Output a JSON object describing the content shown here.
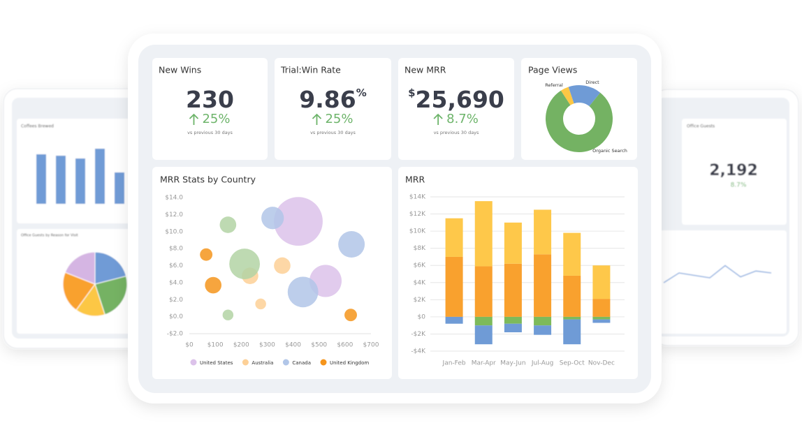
{
  "kpis": [
    {
      "title": "New Wins",
      "value": "230",
      "change": "25%",
      "note": "vs previous 30 days"
    },
    {
      "title": "Trial:Win Rate",
      "value": "9.86",
      "unit": "%",
      "change": "25%",
      "note": "vs previous 30 days"
    },
    {
      "title": "New MRR",
      "prefix": "$",
      "value": "25,690",
      "change": "8.7%",
      "note": "vs previous 30 days"
    }
  ],
  "chart_data": [
    {
      "type": "donut",
      "title": "Page Views",
      "categories": [
        "Referral",
        "Direct",
        "Organic Search"
      ],
      "values": [
        4,
        16,
        80
      ],
      "colors": [
        "#fcc745",
        "#6f9bd6",
        "#74b263"
      ]
    },
    {
      "type": "bubble",
      "title": "MRR Stats by Country",
      "xlim": [
        0,
        700
      ],
      "ylim": [
        -2,
        14
      ],
      "xticks": [
        {
          "value": 0,
          "label": "$0"
        },
        {
          "value": 100,
          "label": "$100"
        },
        {
          "value": 200,
          "label": "$200"
        },
        {
          "value": 300,
          "label": "$300"
        },
        {
          "value": 400,
          "label": "$400"
        },
        {
          "value": 500,
          "label": "$500"
        },
        {
          "value": 600,
          "label": "$600"
        },
        {
          "value": 700,
          "label": "$700"
        }
      ],
      "yticks": [
        {
          "value": -2,
          "label": "-$2.0"
        },
        {
          "value": 0,
          "label": "$0.0"
        },
        {
          "value": 2,
          "label": "$2.0"
        },
        {
          "value": 4,
          "label": "$4.0"
        },
        {
          "value": 6,
          "label": "$6.0"
        },
        {
          "value": 8,
          "label": "$8.0"
        },
        {
          "value": 10,
          "label": "$10.0"
        },
        {
          "value": 12,
          "label": "$12.0"
        },
        {
          "value": 14,
          "label": "$14.0"
        }
      ],
      "series": [
        {
          "name": "United States",
          "color": "#dcc2ea",
          "x": [
            420,
            525
          ],
          "values": [
            11.2,
            4.2
          ],
          "sizes": [
            122,
            53
          ]
        },
        {
          "name": "Australia",
          "color": "#fdd097",
          "x": [
            358,
            234,
            275
          ],
          "values": [
            6.0,
            4.8,
            1.5
          ],
          "sizes": [
            14,
            14,
            6
          ]
        },
        {
          "name": "Canada",
          "color": "#b1c6e8",
          "x": [
            321,
            625,
            438
          ],
          "values": [
            11.6,
            8.5,
            2.9
          ],
          "sizes": [
            26,
            36,
            48
          ]
        },
        {
          "name": "United Kingdom",
          "color": "#f5951c",
          "x": [
            65,
            92,
            622
          ],
          "values": [
            7.3,
            3.7,
            0.2
          ],
          "sizes": [
            8,
            14,
            8
          ]
        },
        {
          "color": "#b3d4a5",
          "x": [
            149,
            213,
            149
          ],
          "values": [
            10.8,
            6.2,
            0.2
          ],
          "sizes": [
            14,
            48,
            6
          ]
        }
      ]
    },
    {
      "type": "stacked_bar",
      "title": "MRR",
      "categories": [
        "Jan-Feb",
        "Mar-Apr",
        "May-Jun",
        "Jul-Aug",
        "Sep-Oct",
        "Nov-Dec"
      ],
      "ylim": [
        -4,
        14
      ],
      "yticks": [
        {
          "value": -4,
          "label": "-$4K"
        },
        {
          "value": -2,
          "label": "-$2K"
        },
        {
          "value": 0,
          "label": "$0"
        },
        {
          "value": 2,
          "label": "$2K"
        },
        {
          "value": 4,
          "label": "$4K"
        },
        {
          "value": 6,
          "label": "$6K"
        },
        {
          "value": 8,
          "label": "$8K"
        },
        {
          "value": 10,
          "label": "$10K"
        },
        {
          "value": 12,
          "label": "$12K"
        },
        {
          "value": 14,
          "label": "$14K"
        }
      ],
      "grid": true,
      "series": [
        {
          "color": "#f9a12e",
          "values": [
            7.0,
            5.9,
            6.2,
            7.3,
            4.8,
            2.1
          ]
        },
        {
          "color": "#fec84a",
          "values": [
            4.5,
            7.6,
            4.8,
            5.2,
            5.0,
            3.9
          ]
        },
        {
          "color": "#7dba5b",
          "values": [
            0,
            -1.0,
            -0.8,
            -1.0,
            -0.3,
            -0.3
          ]
        },
        {
          "color": "#6f9bd6",
          "values": [
            -0.8,
            -2.2,
            -1.0,
            -1.1,
            -2.9,
            -0.4
          ]
        }
      ]
    }
  ],
  "background": {
    "left_title": "Coffees Brewed",
    "left_bars": [
      71,
      69,
      65,
      79,
      45
    ],
    "left_pie_title": "Office Guests by Reason for Visit",
    "left_pie": [
      21,
      24,
      15,
      21,
      19
    ],
    "left_pie_colors": [
      "#6f9bd6",
      "#74b263",
      "#fcc745",
      "#f9a12e",
      "#d5b5e3"
    ],
    "right_title": "Office Guests",
    "right_value": "2,192",
    "right_change": "8.7%",
    "right_line": [
      5,
      7,
      6.5,
      6,
      8.5,
      6.2,
      7.4,
      7
    ]
  }
}
